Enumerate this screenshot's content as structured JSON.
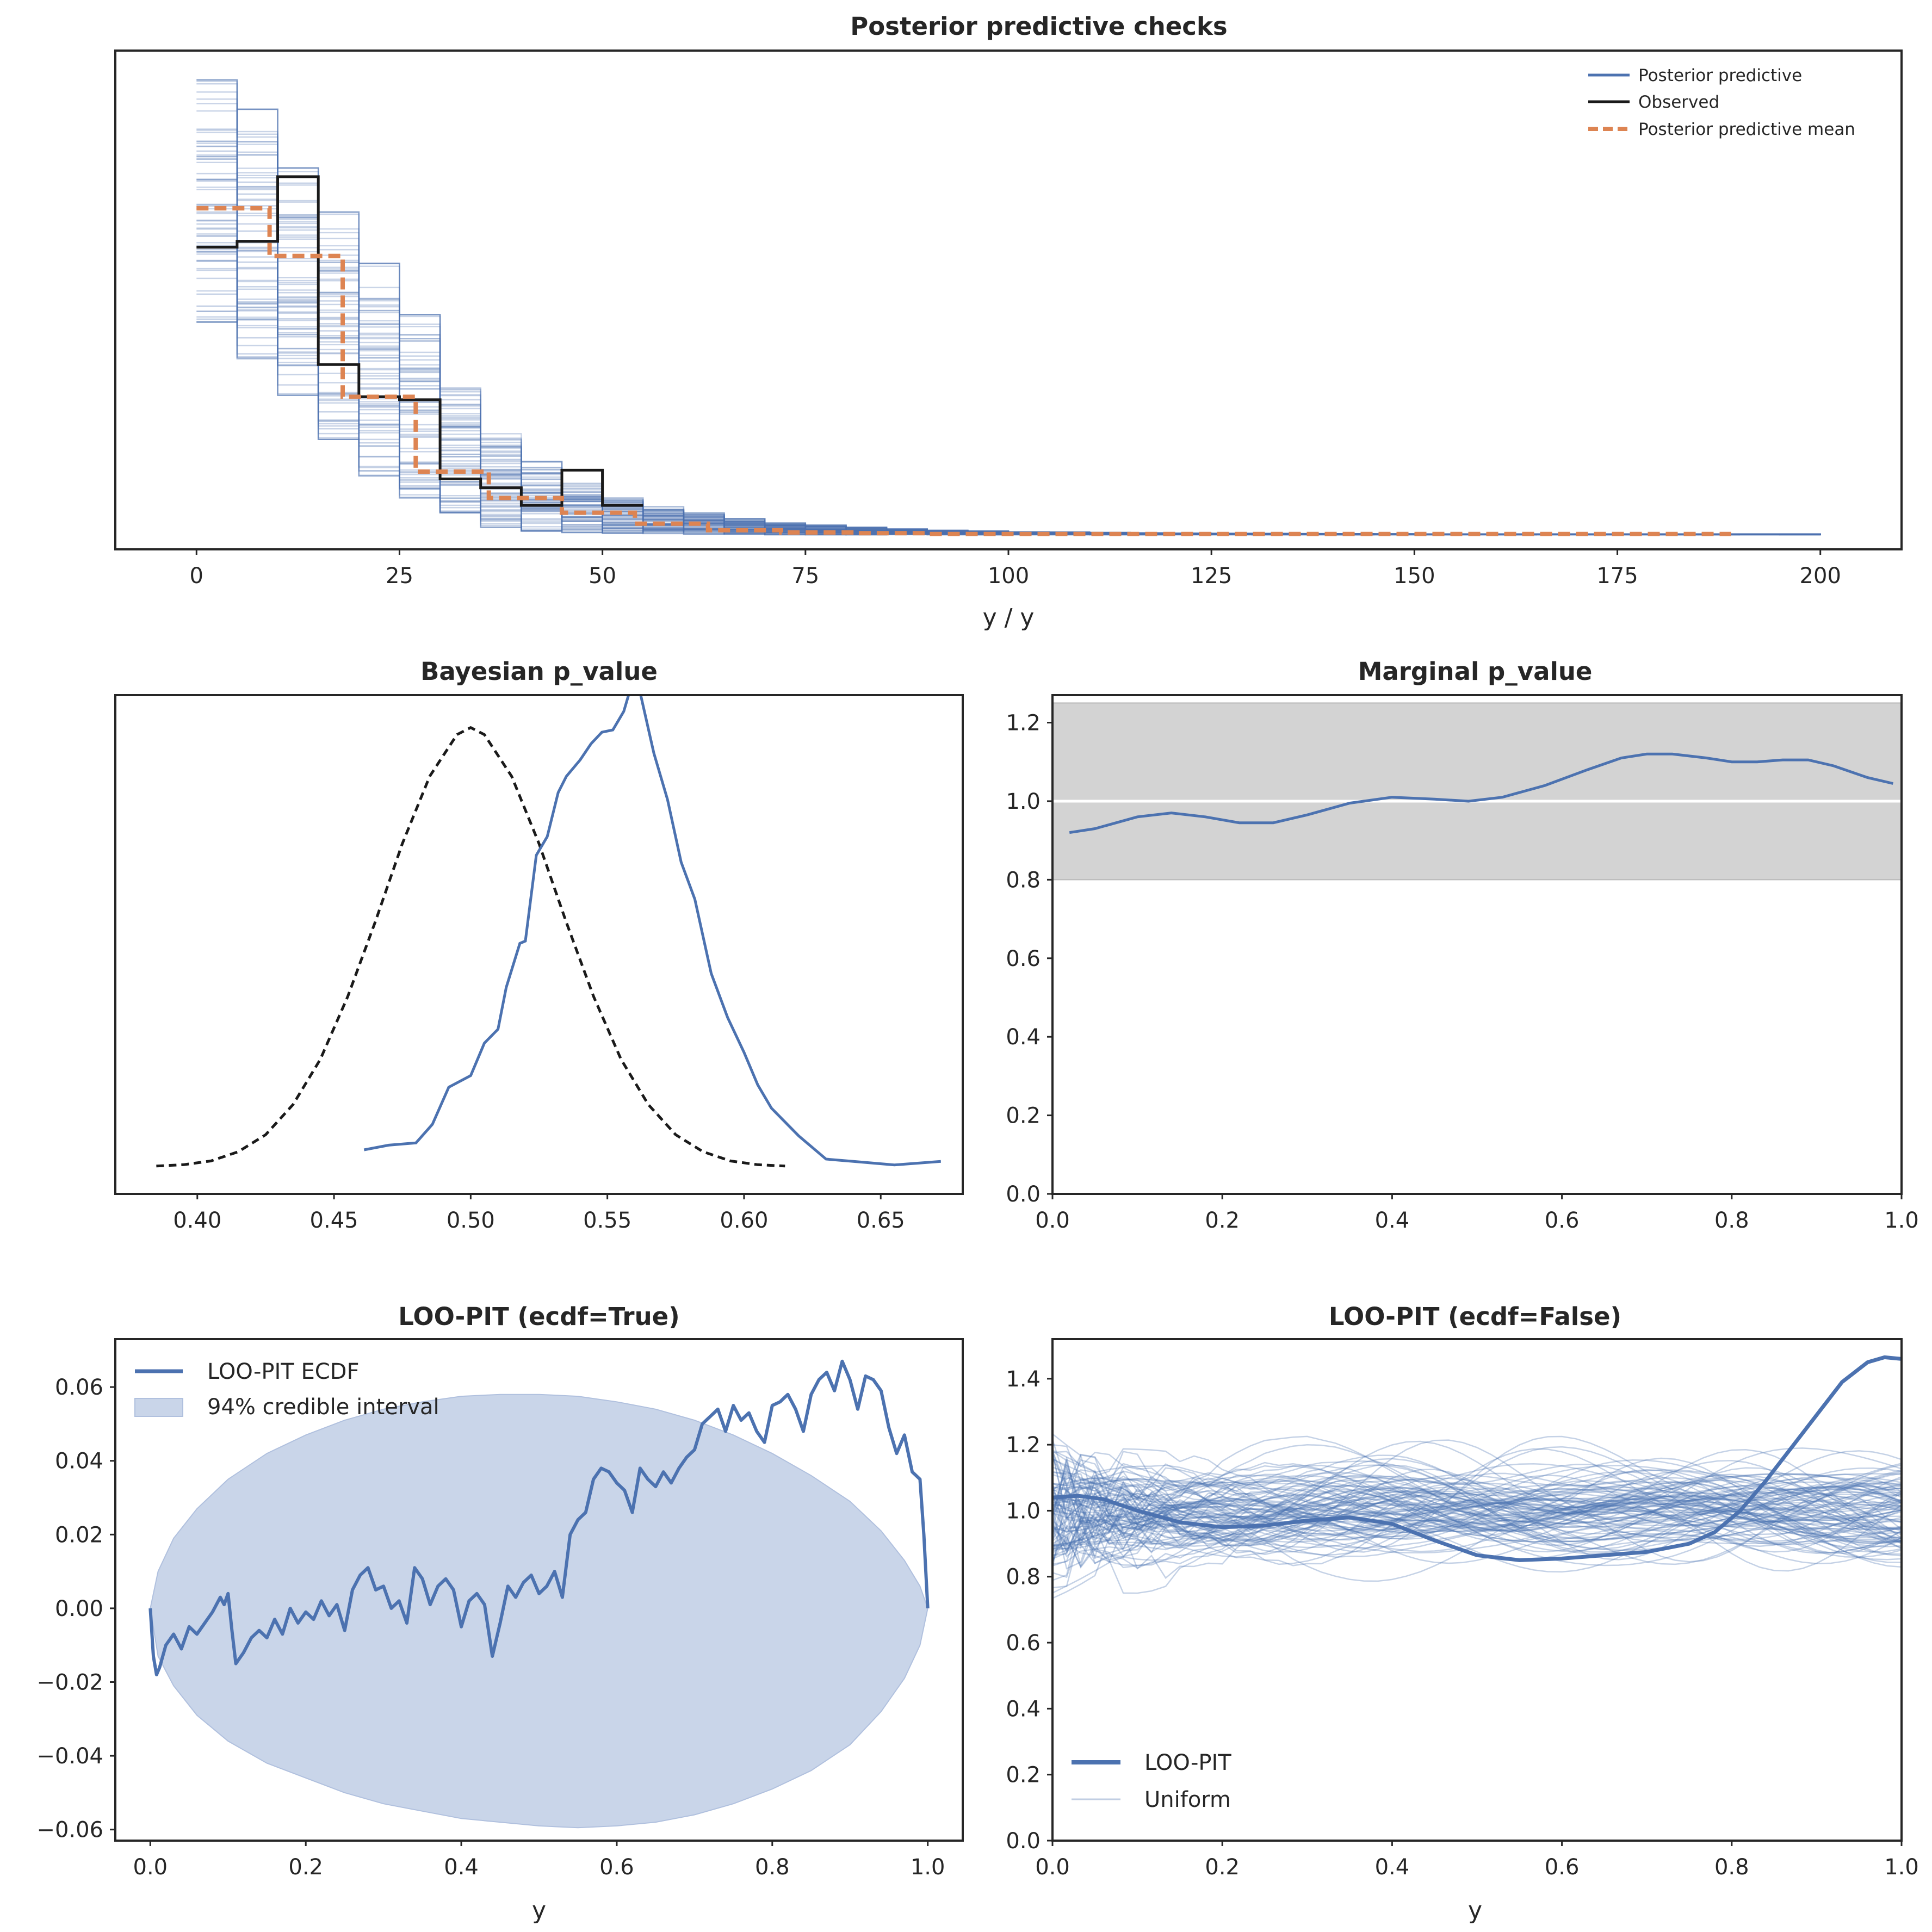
{
  "colors": {
    "blue": "#4c72b0",
    "orange": "#dd8452",
    "black": "#1a1a1a",
    "grey_band": "#d3d3d3",
    "ci_fill": "#c9d5e9"
  },
  "chart_data": [
    {
      "id": "ppc",
      "type": "line",
      "title": "Posterior predictive checks",
      "xlabel": "y / y",
      "ylabel": "",
      "xlim": [
        -10,
        210
      ],
      "ylim": [
        -0.002,
        0.066
      ],
      "xticks": [
        "0",
        "25",
        "50",
        "75",
        "100",
        "125",
        "150",
        "175",
        "200"
      ],
      "grid": false,
      "legend_position": "top-right",
      "legend": [
        "Posterior predictive",
        "Observed",
        "Posterior predictive mean"
      ],
      "series": [
        {
          "name": "Observed",
          "style": "step",
          "x": [
            0,
            5,
            10,
            15,
            20,
            25,
            30,
            35,
            40,
            45,
            50,
            55
          ],
          "y": [
            0.0392,
            0.04,
            0.0488,
            0.0232,
            0.0188,
            0.0184,
            0.0076,
            0.0064,
            0.004,
            0.0088,
            0.004,
            0.004
          ]
        },
        {
          "name": "Posterior predictive mean",
          "style": "step-dashed",
          "x": [
            0,
            9,
            18,
            27,
            36,
            45,
            54,
            63,
            72,
            81,
            90,
            99,
            108,
            117,
            126,
            135,
            144,
            153,
            162,
            171,
            180,
            189
          ],
          "y": [
            0.0445,
            0.038,
            0.0188,
            0.0086,
            0.005,
            0.003,
            0.0015,
            0.0006,
            0.0003,
            0.0002,
            0.0001,
            0.0001,
            0.0001,
            0.0001,
            0.0001,
            0.0001,
            0.0001,
            0.0001,
            0.0001,
            0.0001,
            0.0001,
            0.0001
          ]
        },
        {
          "name": "Posterior predictive",
          "style": "step-band",
          "x": [
            0,
            5,
            10,
            15,
            20,
            25,
            30,
            35,
            40,
            45,
            50,
            55,
            60,
            65,
            70,
            80,
            90,
            100,
            110,
            120,
            150,
            200
          ],
          "lower": [
            0.029,
            0.024,
            0.019,
            0.013,
            0.008,
            0.005,
            0.003,
            0.001,
            0.0005,
            0.0003,
            0.0002,
            0.0001,
            0.0001,
            0.0001,
            0.0,
            0.0,
            0.0,
            0.0,
            0.0,
            0.0,
            0.0,
            0.0
          ],
          "upper": [
            0.062,
            0.058,
            0.05,
            0.044,
            0.037,
            0.03,
            0.02,
            0.014,
            0.01,
            0.007,
            0.005,
            0.0038,
            0.003,
            0.0022,
            0.0016,
            0.001,
            0.0006,
            0.0004,
            0.0003,
            0.0002,
            0.0001,
            0.0001
          ]
        }
      ]
    },
    {
      "id": "bpv",
      "type": "line",
      "title": "Bayesian p_value",
      "xlabel": "",
      "ylabel": "",
      "xlim": [
        0.37,
        0.68
      ],
      "ylim": [
        -0.5,
        21
      ],
      "xticks": [
        "0.40",
        "0.45",
        "0.50",
        "0.55",
        "0.60",
        "0.65"
      ],
      "grid": false,
      "series": [
        {
          "name": "",
          "style": "dashed",
          "x": [
            0.385,
            0.395,
            0.405,
            0.415,
            0.425,
            0.435,
            0.445,
            0.455,
            0.465,
            0.475,
            0.485,
            0.495,
            0.5,
            0.505,
            0.515,
            0.525,
            0.535,
            0.545,
            0.555,
            0.565,
            0.575,
            0.585,
            0.595,
            0.605,
            0.615
          ],
          "y": [
            0.7,
            0.76,
            0.92,
            1.32,
            2.05,
            3.35,
            5.3,
            8.0,
            11.2,
            14.6,
            17.5,
            19.3,
            19.6,
            19.3,
            17.5,
            14.6,
            11.2,
            8.0,
            5.3,
            3.35,
            2.05,
            1.32,
            0.92,
            0.76,
            0.7
          ]
        },
        {
          "name": "",
          "style": "solid",
          "x": [
            0.461,
            0.47,
            0.48,
            0.486,
            0.492,
            0.5,
            0.505,
            0.51,
            0.513,
            0.518,
            0.52,
            0.524,
            0.528,
            0.532,
            0.535,
            0.54,
            0.544,
            0.548,
            0.552,
            0.556,
            0.559,
            0.562,
            0.567,
            0.572,
            0.577,
            0.582,
            0.588,
            0.594,
            0.6,
            0.605,
            0.61,
            0.62,
            0.63,
            0.64,
            0.655,
            0.672
          ],
          "y": [
            1.4,
            1.6,
            1.7,
            2.5,
            4.1,
            4.6,
            6.0,
            6.6,
            8.4,
            10.3,
            10.4,
            14.1,
            14.9,
            16.8,
            17.5,
            18.2,
            18.9,
            19.4,
            19.5,
            20.3,
            21.5,
            21.1,
            18.5,
            16.5,
            13.8,
            12.2,
            9.0,
            7.1,
            5.6,
            4.2,
            3.2,
            2.0,
            1.0,
            0.9,
            0.75,
            0.9
          ]
        }
      ]
    },
    {
      "id": "mpv",
      "type": "line",
      "title": "Marginal p_value",
      "xlabel": "",
      "ylabel": "",
      "xlim": [
        0.0,
        1.0
      ],
      "ylim": [
        0.0,
        1.27
      ],
      "xticks": [
        "0.0",
        "0.2",
        "0.4",
        "0.6",
        "0.8",
        "1.0"
      ],
      "yticks": [
        "0.0",
        "0.2",
        "0.4",
        "0.6",
        "0.8",
        "1.0",
        "1.2"
      ],
      "grid": false,
      "reference_band": [
        0.8,
        1.25
      ],
      "reference_line": 1.0,
      "series": [
        {
          "name": "",
          "style": "solid",
          "x": [
            0.02,
            0.05,
            0.1,
            0.14,
            0.18,
            0.22,
            0.26,
            0.3,
            0.35,
            0.4,
            0.45,
            0.49,
            0.53,
            0.58,
            0.63,
            0.67,
            0.7,
            0.73,
            0.77,
            0.8,
            0.83,
            0.86,
            0.89,
            0.92,
            0.96,
            0.99
          ],
          "y": [
            0.92,
            0.93,
            0.96,
            0.97,
            0.96,
            0.945,
            0.945,
            0.965,
            0.995,
            1.01,
            1.005,
            1.0,
            1.01,
            1.04,
            1.08,
            1.11,
            1.12,
            1.12,
            1.11,
            1.1,
            1.1,
            1.105,
            1.105,
            1.09,
            1.06,
            1.045
          ]
        }
      ]
    },
    {
      "id": "loo_ecdf",
      "type": "line",
      "title": "LOO-PIT (ecdf=True)",
      "xlabel": "y",
      "ylabel": "",
      "xlim": [
        -0.045,
        1.045
      ],
      "ylim": [
        -0.063,
        0.073
      ],
      "xticks": [
        "0.0",
        "0.2",
        "0.4",
        "0.6",
        "0.8",
        "1.0"
      ],
      "yticks": [
        "0.06",
        "0.04",
        "0.02",
        "0.00",
        "−0.02",
        "−0.04",
        "−0.06"
      ],
      "grid": false,
      "legend_position": "top-left",
      "legend": [
        "LOO-PIT ECDF",
        "94% credible interval"
      ],
      "series": [
        {
          "name": "LOO-PIT ECDF",
          "style": "solid",
          "x": [
            0.0,
            0.004,
            0.008,
            0.012,
            0.02,
            0.03,
            0.04,
            0.05,
            0.06,
            0.07,
            0.08,
            0.09,
            0.095,
            0.1,
            0.105,
            0.11,
            0.12,
            0.13,
            0.14,
            0.15,
            0.16,
            0.17,
            0.18,
            0.19,
            0.2,
            0.21,
            0.22,
            0.23,
            0.24,
            0.25,
            0.26,
            0.27,
            0.28,
            0.29,
            0.3,
            0.31,
            0.32,
            0.33,
            0.34,
            0.35,
            0.36,
            0.37,
            0.38,
            0.39,
            0.4,
            0.41,
            0.42,
            0.43,
            0.44,
            0.45,
            0.46,
            0.47,
            0.48,
            0.49,
            0.5,
            0.51,
            0.52,
            0.53,
            0.54,
            0.55,
            0.56,
            0.57,
            0.58,
            0.59,
            0.6,
            0.61,
            0.62,
            0.63,
            0.64,
            0.65,
            0.66,
            0.67,
            0.68,
            0.69,
            0.7,
            0.71,
            0.72,
            0.73,
            0.74,
            0.75,
            0.76,
            0.77,
            0.78,
            0.79,
            0.8,
            0.81,
            0.82,
            0.83,
            0.84,
            0.85,
            0.86,
            0.87,
            0.88,
            0.89,
            0.9,
            0.91,
            0.92,
            0.93,
            0.94,
            0.95,
            0.96,
            0.97,
            0.98,
            0.99,
            0.995,
            1.0
          ],
          "y": [
            0.0,
            -0.013,
            -0.018,
            -0.016,
            -0.01,
            -0.007,
            -0.011,
            -0.005,
            -0.007,
            -0.004,
            -0.001,
            0.003,
            0.001,
            0.004,
            -0.006,
            -0.015,
            -0.012,
            -0.008,
            -0.006,
            -0.008,
            -0.003,
            -0.007,
            0.0,
            -0.004,
            -0.001,
            -0.003,
            0.002,
            -0.002,
            0.001,
            -0.006,
            0.005,
            0.009,
            0.011,
            0.005,
            0.006,
            0.0,
            0.002,
            -0.004,
            0.011,
            0.008,
            0.001,
            0.006,
            0.008,
            0.005,
            -0.005,
            0.002,
            0.004,
            0.001,
            -0.013,
            -0.004,
            0.006,
            0.003,
            0.007,
            0.009,
            0.004,
            0.006,
            0.01,
            0.003,
            0.02,
            0.024,
            0.026,
            0.035,
            0.038,
            0.037,
            0.034,
            0.032,
            0.026,
            0.038,
            0.035,
            0.033,
            0.037,
            0.034,
            0.038,
            0.041,
            0.043,
            0.05,
            0.052,
            0.054,
            0.048,
            0.055,
            0.051,
            0.053,
            0.048,
            0.045,
            0.055,
            0.056,
            0.058,
            0.054,
            0.048,
            0.058,
            0.062,
            0.064,
            0.059,
            0.067,
            0.062,
            0.054,
            0.063,
            0.062,
            0.059,
            0.049,
            0.042,
            0.047,
            0.037,
            0.035,
            0.02,
            0.0
          ]
        },
        {
          "name": "94% credible interval",
          "style": "band",
          "x": [
            0.0,
            0.01,
            0.03,
            0.06,
            0.1,
            0.15,
            0.2,
            0.25,
            0.3,
            0.35,
            0.4,
            0.45,
            0.5,
            0.55,
            0.6,
            0.65,
            0.7,
            0.75,
            0.8,
            0.85,
            0.9,
            0.94,
            0.97,
            0.99,
            1.0
          ],
          "lower": [
            0.0,
            -0.013,
            -0.021,
            -0.029,
            -0.036,
            -0.042,
            -0.046,
            -0.05,
            -0.053,
            -0.055,
            -0.057,
            -0.058,
            -0.059,
            -0.0595,
            -0.059,
            -0.058,
            -0.056,
            -0.053,
            -0.049,
            -0.044,
            -0.037,
            -0.028,
            -0.019,
            -0.01,
            0.0
          ],
          "upper": [
            0.0,
            0.01,
            0.019,
            0.027,
            0.035,
            0.042,
            0.047,
            0.051,
            0.054,
            0.056,
            0.0575,
            0.058,
            0.058,
            0.0575,
            0.056,
            0.054,
            0.051,
            0.047,
            0.042,
            0.036,
            0.029,
            0.021,
            0.013,
            0.006,
            0.0
          ]
        }
      ]
    },
    {
      "id": "loo_kde",
      "type": "line",
      "title": "LOO-PIT (ecdf=False)",
      "xlabel": "y",
      "ylabel": "",
      "xlim": [
        0.0,
        1.0
      ],
      "ylim": [
        0.0,
        1.52
      ],
      "xticks": [
        "0.0",
        "0.2",
        "0.4",
        "0.6",
        "0.8",
        "1.0"
      ],
      "yticks": [
        "0.0",
        "0.2",
        "0.4",
        "0.6",
        "0.8",
        "1.0",
        "1.2",
        "1.4"
      ],
      "grid": false,
      "legend_position": "bottom-left",
      "legend": [
        "LOO-PIT",
        "Uniform"
      ],
      "uniform_curve_count": 100,
      "series": [
        {
          "name": "LOO-PIT",
          "style": "solid-thick",
          "x": [
            0.0,
            0.03,
            0.06,
            0.1,
            0.15,
            0.2,
            0.25,
            0.3,
            0.35,
            0.4,
            0.45,
            0.5,
            0.55,
            0.6,
            0.65,
            0.7,
            0.75,
            0.78,
            0.81,
            0.84,
            0.87,
            0.9,
            0.93,
            0.96,
            0.98,
            1.0
          ],
          "y": [
            1.04,
            1.045,
            1.035,
            1.0,
            0.965,
            0.95,
            0.955,
            0.97,
            0.98,
            0.96,
            0.91,
            0.865,
            0.85,
            0.855,
            0.865,
            0.875,
            0.9,
            0.935,
            1.0,
            1.09,
            1.19,
            1.29,
            1.39,
            1.45,
            1.465,
            1.46
          ]
        }
      ]
    }
  ]
}
